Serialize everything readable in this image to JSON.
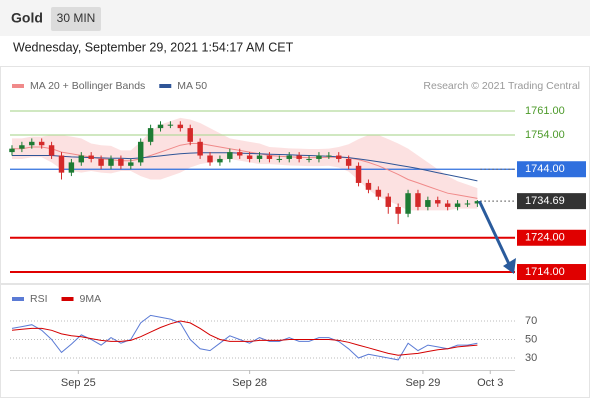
{
  "header": {
    "title": "Gold",
    "timeframe": "30 MIN",
    "timestamp": "Wednesday, September 29, 2021 1:54:17 AM CET"
  },
  "chart_data": [
    {
      "type": "candlestick",
      "credit": "Research © 2021 Trading Central",
      "up_color": "#1e7b34",
      "down_color": "#d42a2a",
      "open": [
        1749,
        1750,
        1751,
        1752,
        1751,
        1748,
        1743,
        1746,
        1748,
        1747,
        1745,
        1747,
        1745,
        1746,
        1752,
        1756,
        1757,
        1757,
        1756,
        1752,
        1748,
        1746,
        1747,
        1749,
        1748,
        1747,
        1748,
        1747,
        1747,
        1748,
        1747,
        1747,
        1748,
        1748,
        1747,
        1745,
        1740,
        1738,
        1736,
        1733,
        1731,
        1737,
        1733,
        1735,
        1734,
        1733,
        1734,
        1734
      ],
      "high": [
        1751,
        1752,
        1753,
        1753,
        1752,
        1749,
        1747,
        1749,
        1749,
        1748,
        1748,
        1748,
        1747,
        1753,
        1757,
        1758,
        1758,
        1758,
        1757,
        1753,
        1749,
        1748,
        1750,
        1750,
        1749,
        1749,
        1749,
        1748,
        1749,
        1749,
        1748,
        1749,
        1749,
        1749,
        1748,
        1746,
        1741,
        1739,
        1737,
        1734,
        1738,
        1738,
        1736,
        1736,
        1735,
        1735,
        1735,
        1735
      ],
      "low": [
        1748,
        1749,
        1750,
        1750,
        1747,
        1741,
        1742,
        1745,
        1746,
        1744,
        1744,
        1744,
        1744,
        1745,
        1751,
        1755,
        1756,
        1755,
        1751,
        1747,
        1745,
        1745,
        1746,
        1747,
        1746,
        1746,
        1746,
        1746,
        1746,
        1746,
        1746,
        1746,
        1747,
        1746,
        1744,
        1739,
        1737,
        1735,
        1731,
        1728,
        1730,
        1732,
        1732,
        1733,
        1732,
        1732,
        1733,
        1733
      ],
      "close": [
        1750,
        1751,
        1752,
        1751,
        1748,
        1743,
        1746,
        1748,
        1747,
        1745,
        1747,
        1745,
        1746,
        1752,
        1756,
        1757,
        1757,
        1756,
        1752,
        1748,
        1746,
        1747,
        1749,
        1748,
        1747,
        1748,
        1747,
        1747,
        1748,
        1747,
        1747,
        1748,
        1748,
        1747,
        1745,
        1740,
        1738,
        1736,
        1733,
        1731,
        1737,
        1733,
        1735,
        1734,
        1733,
        1734,
        1734,
        1734.69
      ],
      "overlays": [
        {
          "name": "MA 20 + Bollinger Bands",
          "color": "#f08a8a",
          "band_color": "#fbd9d9",
          "values": [
            1750,
            1750,
            1750.5,
            1750.5,
            1750,
            1749,
            1748.5,
            1748,
            1747.5,
            1747,
            1746.8,
            1746.5,
            1746.5,
            1747,
            1748,
            1749,
            1750,
            1751,
            1751.5,
            1751.5,
            1751,
            1750.5,
            1750,
            1749.5,
            1749,
            1748.5,
            1748,
            1747.8,
            1747.6,
            1747.5,
            1747.4,
            1747.4,
            1747.5,
            1747.5,
            1747.3,
            1746.8,
            1746,
            1745,
            1743.8,
            1742.5,
            1741,
            1740,
            1739,
            1738,
            1737,
            1736.5,
            1736,
            1735.5
          ],
          "upper": [
            1753,
            1753,
            1753.5,
            1753.5,
            1754,
            1754,
            1753.5,
            1753,
            1751.5,
            1751,
            1750.8,
            1749.5,
            1749.5,
            1752,
            1755,
            1757,
            1758,
            1759,
            1758.5,
            1757.5,
            1756,
            1754.5,
            1753,
            1752.5,
            1752,
            1751.5,
            1750.5,
            1750.3,
            1750.1,
            1750,
            1749.9,
            1749.9,
            1750,
            1750.5,
            1751.3,
            1752.8,
            1754,
            1754,
            1752.8,
            1751.5,
            1750,
            1748,
            1746,
            1744,
            1742,
            1740.5,
            1739.5,
            1738.5
          ],
          "lower": [
            1747,
            1747,
            1747.5,
            1747.5,
            1746,
            1744,
            1743.5,
            1743,
            1743.5,
            1743,
            1742.8,
            1743.5,
            1743.5,
            1742,
            1741,
            1741,
            1742,
            1743,
            1744.5,
            1745.5,
            1746,
            1746.5,
            1747,
            1746.5,
            1746,
            1745.5,
            1745.5,
            1745.3,
            1745.1,
            1745,
            1744.9,
            1744.9,
            1745,
            1744.5,
            1743.3,
            1740.8,
            1738,
            1736,
            1734.8,
            1733.5,
            1732,
            1732,
            1732,
            1732,
            1732,
            1732.5,
            1732.5,
            1732.5
          ]
        },
        {
          "name": "MA 50",
          "color": "#2f5597",
          "values": [
            1748,
            1748,
            1748,
            1748,
            1748,
            1747.8,
            1747.6,
            1747.5,
            1747.4,
            1747.3,
            1747.2,
            1747.2,
            1747.1,
            1747.3,
            1747.6,
            1747.9,
            1748.2,
            1748.5,
            1748.7,
            1748.8,
            1748.8,
            1748.8,
            1748.8,
            1748.7,
            1748.6,
            1748.5,
            1748.4,
            1748.3,
            1748.2,
            1748.1,
            1748,
            1747.9,
            1747.8,
            1747.6,
            1747.4,
            1747,
            1746.6,
            1746.2,
            1745.7,
            1745.2,
            1744.7,
            1744.2,
            1743.6,
            1743,
            1742.4,
            1741.8,
            1741.2,
            1740.6
          ]
        }
      ],
      "levels": [
        {
          "value": 1761,
          "label": "1761.00",
          "color": "#b5d99c",
          "text_color": "#4c9a2a",
          "tag": false,
          "line": "full"
        },
        {
          "value": 1754,
          "label": "1754.00",
          "color": "#b5d99c",
          "text_color": "#4c9a2a",
          "tag": false,
          "line": "full"
        },
        {
          "value": 1744,
          "label": "1744.00",
          "color": "#2f6fde",
          "text_color": "#ffffff",
          "tag": true,
          "line": "full"
        },
        {
          "value": 1734.69,
          "label": "1734.69",
          "color": "#333333",
          "text_color": "#ffffff",
          "tag": true,
          "line": "dotted"
        },
        {
          "value": 1724,
          "label": "1724.00",
          "color": "#e00000",
          "text_color": "#ffffff",
          "tag": true,
          "line": "full"
        },
        {
          "value": 1714,
          "label": "1714.00",
          "color": "#e00000",
          "text_color": "#ffffff",
          "tag": true,
          "line": "full"
        }
      ],
      "ylim": [
        1711,
        1764
      ],
      "xlim": [
        -0.2,
        50.8
      ]
    },
    {
      "type": "line",
      "series": [
        {
          "name": "RSI",
          "color": "#5b7bd5",
          "values": [
            62,
            64,
            66,
            60,
            50,
            36,
            45,
            55,
            50,
            44,
            52,
            46,
            50,
            68,
            76,
            74,
            72,
            68,
            50,
            40,
            38,
            46,
            54,
            50,
            46,
            52,
            48,
            48,
            52,
            48,
            48,
            52,
            52,
            48,
            40,
            30,
            34,
            32,
            30,
            28,
            46,
            38,
            44,
            42,
            40,
            44,
            44,
            46
          ]
        },
        {
          "name": "9MA",
          "color": "#d40000",
          "values": [
            60,
            61,
            62,
            62,
            60,
            56,
            54,
            53,
            51,
            49,
            48,
            48,
            49,
            53,
            58,
            63,
            67,
            70,
            68,
            62,
            55,
            50,
            48,
            48,
            48,
            49,
            49,
            49,
            50,
            50,
            50,
            50,
            50,
            49,
            47,
            44,
            41,
            38,
            35,
            33,
            34,
            35,
            37,
            39,
            40,
            42,
            43,
            44
          ]
        }
      ],
      "ylim": [
        20,
        80
      ],
      "yticks": [
        30,
        50,
        70
      ],
      "xlim": [
        -0.2,
        50.8
      ],
      "xticks": [
        {
          "value": 6.7,
          "label": "Sep 25"
        },
        {
          "value": 24.0,
          "label": "Sep 28"
        },
        {
          "value": 41.5,
          "label": "Sep 29"
        },
        {
          "value": 48.3,
          "label": "Oct 3"
        }
      ]
    }
  ]
}
